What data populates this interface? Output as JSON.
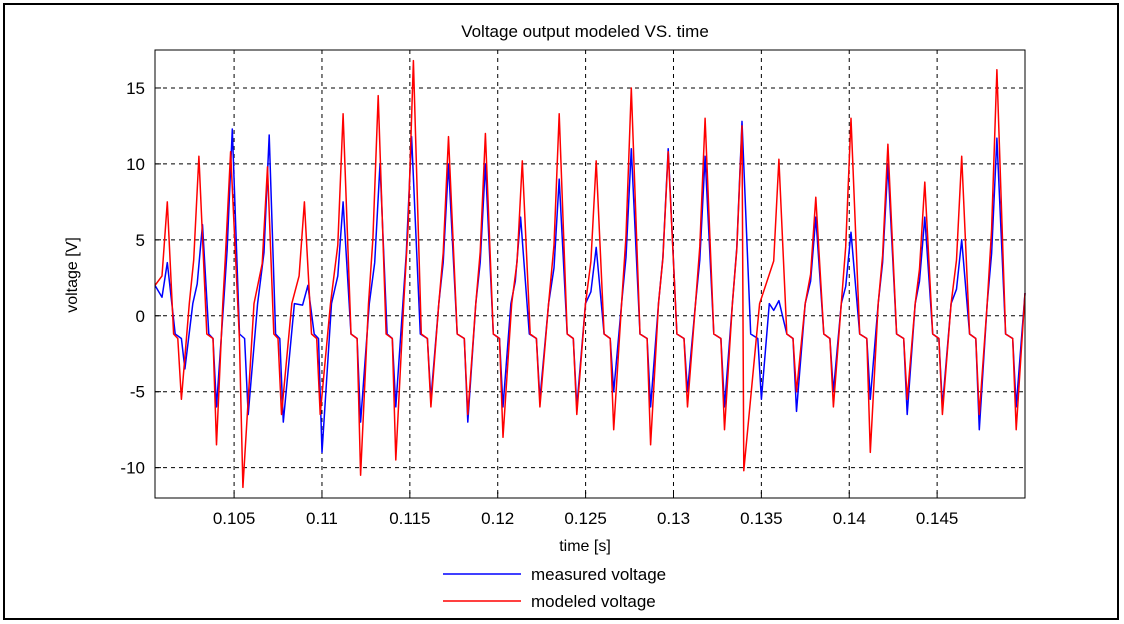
{
  "chart_data": {
    "type": "line",
    "title": "Voltage output modeled VS. time",
    "xlabel": "time [s]",
    "ylabel": "voltage [V]",
    "xlim": [
      0.1005,
      0.15
    ],
    "ylim": [
      -12,
      17.5
    ],
    "xticks": [
      0.105,
      0.11,
      0.115,
      0.12,
      0.125,
      0.13,
      0.135,
      0.14,
      0.145
    ],
    "xtick_labels": [
      "0.105",
      "0.11",
      "0.115",
      "0.12",
      "0.125",
      "0.13",
      "0.135",
      "0.14",
      "0.145"
    ],
    "yticks": [
      -10,
      -5,
      0,
      5,
      10,
      15
    ],
    "ytick_labels": [
      "-10",
      "-5",
      "0",
      "5",
      "10",
      "15"
    ],
    "grid": true,
    "legend_position": "bottom-center",
    "series": [
      {
        "name": "measured voltage",
        "color": "#0000ff",
        "peaks": [
          {
            "t": 0.1012,
            "v": 3.5
          },
          {
            "t": 0.1032,
            "v": 6.0
          },
          {
            "t": 0.1049,
            "v": 12.3
          },
          {
            "t": 0.107,
            "v": 11.9
          },
          {
            "t": 0.1092,
            "v": 2.0
          },
          {
            "t": 0.1112,
            "v": 7.5
          },
          {
            "t": 0.1133,
            "v": 10.0
          },
          {
            "t": 0.1151,
            "v": 11.8
          },
          {
            "t": 0.1172,
            "v": 10.0
          },
          {
            "t": 0.1193,
            "v": 10.0
          },
          {
            "t": 0.1213,
            "v": 6.5
          },
          {
            "t": 0.1235,
            "v": 9.0
          },
          {
            "t": 0.1256,
            "v": 4.5
          },
          {
            "t": 0.1276,
            "v": 11.0
          },
          {
            "t": 0.1297,
            "v": 11.0
          },
          {
            "t": 0.1318,
            "v": 10.5
          },
          {
            "t": 0.1339,
            "v": 12.8
          },
          {
            "t": 0.136,
            "v": 1.0
          },
          {
            "t": 0.1381,
            "v": 6.5
          },
          {
            "t": 0.1401,
            "v": 5.5
          },
          {
            "t": 0.1422,
            "v": 10.0
          },
          {
            "t": 0.1443,
            "v": 6.5
          },
          {
            "t": 0.1464,
            "v": 5.0
          },
          {
            "t": 0.1484,
            "v": 11.7
          }
        ],
        "troughs": [
          {
            "t": 0.1022,
            "v": -3.5
          },
          {
            "t": 0.104,
            "v": -6.0
          },
          {
            "t": 0.1058,
            "v": -6.5
          },
          {
            "t": 0.1078,
            "v": -7.0
          },
          {
            "t": 0.11,
            "v": -9.0
          },
          {
            "t": 0.1122,
            "v": -7.0
          },
          {
            "t": 0.1142,
            "v": -6.0
          },
          {
            "t": 0.1162,
            "v": -5.5
          },
          {
            "t": 0.1183,
            "v": -7.0
          },
          {
            "t": 0.1203,
            "v": -6.0
          },
          {
            "t": 0.1224,
            "v": -5.5
          },
          {
            "t": 0.1245,
            "v": -6.0
          },
          {
            "t": 0.1266,
            "v": -5.0
          },
          {
            "t": 0.1287,
            "v": -6.0
          },
          {
            "t": 0.1308,
            "v": -5.0
          },
          {
            "t": 0.1329,
            "v": -6.0
          },
          {
            "t": 0.135,
            "v": -5.5
          },
          {
            "t": 0.137,
            "v": -6.3
          },
          {
            "t": 0.1391,
            "v": -5.0
          },
          {
            "t": 0.1412,
            "v": -5.5
          },
          {
            "t": 0.1433,
            "v": -6.5
          },
          {
            "t": 0.1453,
            "v": -6.0
          },
          {
            "t": 0.1474,
            "v": -7.5
          },
          {
            "t": 0.1495,
            "v": -6.0
          }
        ]
      },
      {
        "name": "modeled voltage",
        "color": "#ff0000",
        "peaks": [
          {
            "t": 0.1012,
            "v": 7.5
          },
          {
            "t": 0.103,
            "v": 10.5
          },
          {
            "t": 0.1048,
            "v": 10.8
          },
          {
            "t": 0.1069,
            "v": 9.8
          },
          {
            "t": 0.109,
            "v": 7.5
          },
          {
            "t": 0.1112,
            "v": 13.3
          },
          {
            "t": 0.1132,
            "v": 14.5
          },
          {
            "t": 0.1152,
            "v": 16.8
          },
          {
            "t": 0.1172,
            "v": 11.8
          },
          {
            "t": 0.1193,
            "v": 12.0
          },
          {
            "t": 0.1214,
            "v": 10.2
          },
          {
            "t": 0.1235,
            "v": 13.3
          },
          {
            "t": 0.1256,
            "v": 10.2
          },
          {
            "t": 0.1276,
            "v": 15.0
          },
          {
            "t": 0.1297,
            "v": 10.8
          },
          {
            "t": 0.1318,
            "v": 13.0
          },
          {
            "t": 0.1339,
            "v": 12.5
          },
          {
            "t": 0.136,
            "v": 10.3
          },
          {
            "t": 0.1381,
            "v": 7.8
          },
          {
            "t": 0.1401,
            "v": 13.0
          },
          {
            "t": 0.1422,
            "v": 11.3
          },
          {
            "t": 0.1443,
            "v": 8.8
          },
          {
            "t": 0.1464,
            "v": 10.5
          },
          {
            "t": 0.1484,
            "v": 16.2
          }
        ],
        "troughs": [
          {
            "t": 0.102,
            "v": -5.5
          },
          {
            "t": 0.104,
            "v": -8.5
          },
          {
            "t": 0.1055,
            "v": -11.3
          },
          {
            "t": 0.1077,
            "v": -6.5
          },
          {
            "t": 0.1099,
            "v": -6.5
          },
          {
            "t": 0.1122,
            "v": -10.5
          },
          {
            "t": 0.1142,
            "v": -9.5
          },
          {
            "t": 0.1162,
            "v": -6.0
          },
          {
            "t": 0.1183,
            "v": -6.5
          },
          {
            "t": 0.1203,
            "v": -8.0
          },
          {
            "t": 0.1224,
            "v": -6.0
          },
          {
            "t": 0.1245,
            "v": -6.5
          },
          {
            "t": 0.1266,
            "v": -7.5
          },
          {
            "t": 0.1287,
            "v": -8.5
          },
          {
            "t": 0.1308,
            "v": -6.0
          },
          {
            "t": 0.1329,
            "v": -7.5
          },
          {
            "t": 0.134,
            "v": -10.2
          },
          {
            "t": 0.137,
            "v": -5.0
          },
          {
            "t": 0.1391,
            "v": -6.0
          },
          {
            "t": 0.1412,
            "v": -9.0
          },
          {
            "t": 0.1433,
            "v": -5.5
          },
          {
            "t": 0.1453,
            "v": -6.5
          },
          {
            "t": 0.1474,
            "v": -6.5
          },
          {
            "t": 0.1495,
            "v": -7.5
          }
        ]
      }
    ]
  }
}
